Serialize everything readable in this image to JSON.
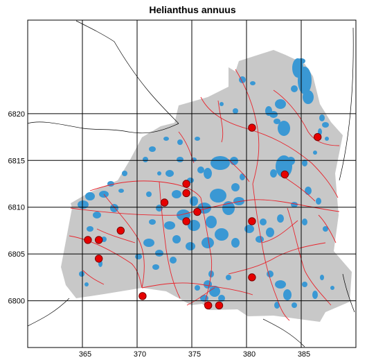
{
  "title": "Helianthus annuus",
  "axes": {
    "x_range": [
      360,
      390
    ],
    "y_range": [
      6795,
      6830
    ],
    "x_ticks": [
      "365",
      "370",
      "375",
      "380",
      "385"
    ],
    "y_ticks": [
      "6820",
      "6815",
      "6810",
      "6805",
      "6800"
    ],
    "grid": true
  },
  "colors": {
    "land": "#c8c8c8",
    "water": "#3a98d4",
    "roads": "#e8242c",
    "borders": "#000000",
    "grid": "#000000",
    "point_fill": "#e60000",
    "point_stroke": "#7a0000"
  },
  "chart_data": {
    "type": "scatter",
    "title": "Helianthus annuus",
    "xlabel": "",
    "ylabel": "",
    "xlim": [
      360,
      390
    ],
    "ylim": [
      6795,
      6830
    ],
    "grid": true,
    "points": [
      {
        "x": 380.5,
        "y": 6818.5
      },
      {
        "x": 386.5,
        "y": 6817.5
      },
      {
        "x": 383.5,
        "y": 6813.5
      },
      {
        "x": 374.5,
        "y": 6812.5
      },
      {
        "x": 374.5,
        "y": 6811.5
      },
      {
        "x": 372.5,
        "y": 6810.5
      },
      {
        "x": 375.5,
        "y": 6809.5
      },
      {
        "x": 374.5,
        "y": 6808.5
      },
      {
        "x": 380.5,
        "y": 6808.5
      },
      {
        "x": 368.5,
        "y": 6807.5
      },
      {
        "x": 365.5,
        "y": 6806.5
      },
      {
        "x": 366.5,
        "y": 6806.5
      },
      {
        "x": 366.5,
        "y": 6804.5
      },
      {
        "x": 380.5,
        "y": 6802.5
      },
      {
        "x": 370.5,
        "y": 6800.5
      },
      {
        "x": 376.5,
        "y": 6799.5
      },
      {
        "x": 377.5,
        "y": 6799.5
      }
    ]
  }
}
